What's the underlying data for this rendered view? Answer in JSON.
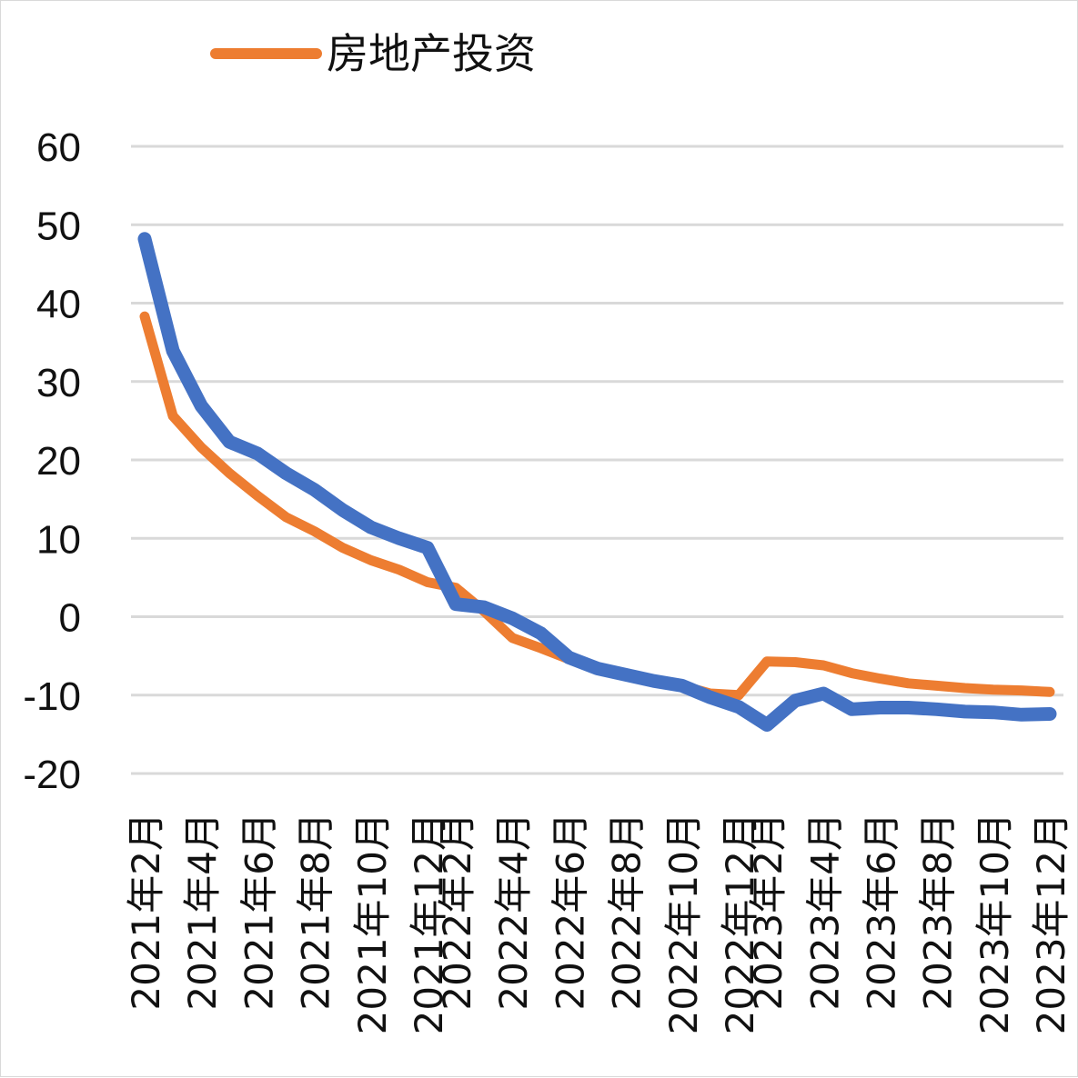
{
  "chart_data": {
    "type": "line",
    "title": "",
    "xlabel": "",
    "ylabel": "",
    "ylim": [
      -20,
      60
    ],
    "y_ticks": [
      60,
      50,
      40,
      30,
      20,
      10,
      0,
      -10,
      -20
    ],
    "grid": true,
    "legend_placement": "top-left",
    "x_tick_labels": [
      "2021年2月",
      "2021年4月",
      "2021年6月",
      "2021年8月",
      "2021年10月",
      "2021年12月",
      "2022年2月",
      "2022年4月",
      "2022年6月",
      "2022年8月",
      "2022年10月",
      "2022年12月",
      "2023年2月",
      "2023年4月",
      "2023年6月",
      "2023年8月",
      "2023年10月",
      "2023年12月"
    ],
    "x": [
      "2021年2月",
      "2021年3月",
      "2021年4月",
      "2021年5月",
      "2021年6月",
      "2021年7月",
      "2021年8月",
      "2021年9月",
      "2021年10月",
      "2021年11月",
      "2021年12月",
      "2022年2月",
      "2022年3月",
      "2022年4月",
      "2022年5月",
      "2022年6月",
      "2022年7月",
      "2022年8月",
      "2022年9月",
      "2022年10月",
      "2022年11月",
      "2022年12月",
      "2023年2月",
      "2023年3月",
      "2023年4月",
      "2023年5月",
      "2023年6月",
      "2023年7月",
      "2023年8月",
      "2023年9月",
      "2023年10月",
      "2023年11月",
      "2023年12月"
    ],
    "series": [
      {
        "name": "房地产投资",
        "color": "#ED7D31",
        "values": [
          38.3,
          25.6,
          21.6,
          18.3,
          15.4,
          12.7,
          10.9,
          8.8,
          7.2,
          6.0,
          4.4,
          3.7,
          0.7,
          -2.7,
          -4.0,
          -5.4,
          -6.4,
          -7.4,
          -8.0,
          -8.8,
          -9.8,
          -10.0,
          -5.7,
          -5.8,
          -6.2,
          -7.2,
          -7.9,
          -8.5,
          -8.8,
          -9.1,
          -9.3,
          -9.4,
          -9.6
        ]
      },
      {
        "name": "",
        "color": "#4472C4",
        "values": [
          48.2,
          33.9,
          26.9,
          22.3,
          20.8,
          18.3,
          16.2,
          13.6,
          11.4,
          10.0,
          8.8,
          1.6,
          1.2,
          -0.2,
          -2.1,
          -5.2,
          -6.6,
          -7.4,
          -8.2,
          -8.8,
          -10.3,
          -11.5,
          -13.8,
          -10.7,
          -9.8,
          -11.8,
          -11.6,
          -11.6,
          -11.8,
          -12.1,
          -12.2,
          -12.5,
          -12.4
        ]
      }
    ]
  }
}
